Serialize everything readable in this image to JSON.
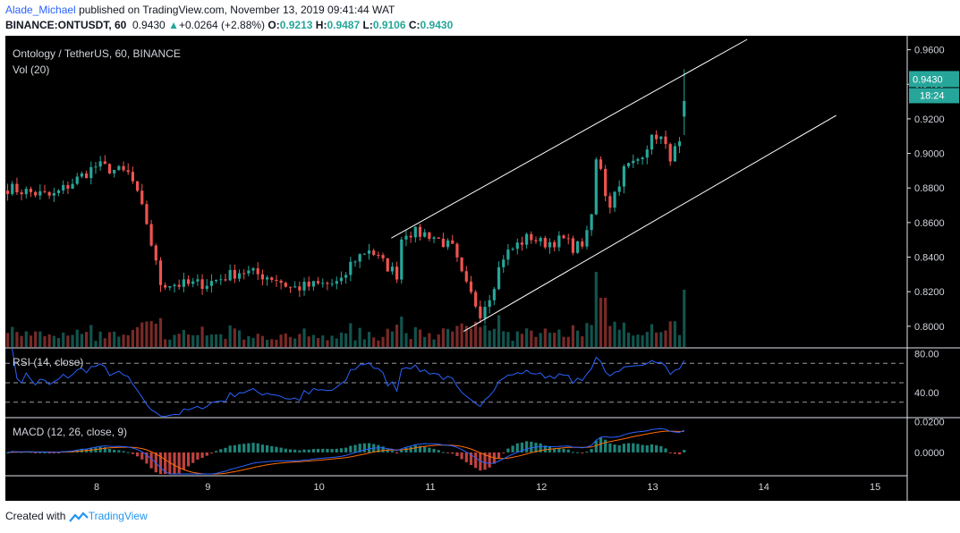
{
  "header": {
    "author": "Alade_Michael",
    "published": "published on TradingView.com, November 13, 2019 09:41:44 WAT",
    "symbol": "BINANCE:ONTUSDT, 60",
    "last": "0.9430",
    "arrow": "▲",
    "change": "+0.0264 (+2.88%)",
    "o_label": "O:",
    "o": "0.9213",
    "h_label": "H:",
    "h": "0.9487",
    "l_label": "L:",
    "l": "0.9106",
    "c_label": "C:",
    "c": "0.9430"
  },
  "footer": {
    "created_with": "Created with",
    "brand": "TradingView"
  },
  "colors": {
    "up": "#26a69a",
    "down": "#ef5350",
    "rsi": "#2962ff",
    "macd": "#2962ff",
    "signal": "#ff6d00",
    "background": "#000000",
    "channel": "#ffffff"
  },
  "chart_data": [
    {
      "type": "candlestick",
      "title": "Ontology / TetherUS, 60, BINANCE",
      "volume_label": "Vol (20)",
      "x_ticks": [
        "8",
        "9",
        "10",
        "11",
        "12",
        "13",
        "14",
        "15"
      ],
      "y_ticks": [
        "0.8000",
        "0.8200",
        "0.8400",
        "0.8600",
        "0.8800",
        "0.9000",
        "0.9200",
        "0.9400",
        "0.9600"
      ],
      "ylim": [
        0.788,
        0.966
      ],
      "last_price": "0.9430",
      "countdown": "18:24",
      "close_waypoints": [
        [
          7.2,
          0.88
        ],
        [
          7.6,
          0.875
        ],
        [
          8.0,
          0.893
        ],
        [
          8.3,
          0.888
        ],
        [
          8.45,
          0.86
        ],
        [
          8.57,
          0.825
        ],
        [
          8.8,
          0.824
        ],
        [
          9.0,
          0.825
        ],
        [
          9.3,
          0.832
        ],
        [
          9.6,
          0.828
        ],
        [
          9.75,
          0.822
        ],
        [
          10.0,
          0.824
        ],
        [
          10.2,
          0.825
        ],
        [
          10.3,
          0.838
        ],
        [
          10.45,
          0.845
        ],
        [
          10.55,
          0.838
        ],
        [
          10.7,
          0.83
        ],
        [
          10.75,
          0.855
        ],
        [
          11.0,
          0.853
        ],
        [
          11.2,
          0.845
        ],
        [
          11.3,
          0.826
        ],
        [
          11.45,
          0.808
        ],
        [
          11.55,
          0.82
        ],
        [
          11.65,
          0.84
        ],
        [
          11.8,
          0.848
        ],
        [
          11.9,
          0.852
        ],
        [
          12.0,
          0.848
        ],
        [
          12.2,
          0.85
        ],
        [
          12.3,
          0.845
        ],
        [
          12.4,
          0.85
        ],
        [
          12.47,
          0.87
        ],
        [
          12.5,
          0.905
        ],
        [
          12.6,
          0.868
        ],
        [
          12.75,
          0.892
        ],
        [
          12.85,
          0.895
        ],
        [
          12.95,
          0.905
        ],
        [
          13.05,
          0.912
        ],
        [
          13.15,
          0.898
        ],
        [
          13.25,
          0.905
        ],
        [
          13.3,
          0.943
        ]
      ],
      "channel": {
        "upper": {
          "from": [
            10.65,
            0.851
          ],
          "to": [
            13.85,
            0.966
          ]
        },
        "lower": {
          "from": [
            11.3,
            0.797
          ],
          "to": [
            14.65,
            0.922
          ]
        }
      }
    },
    {
      "type": "line",
      "title": "RSI (14, close)",
      "y_ticks": [
        "40.00",
        "80.00"
      ],
      "bands": [
        30,
        50,
        70
      ],
      "ylim": [
        15,
        85
      ]
    },
    {
      "type": "line",
      "title": "MACD (12, 26, close, 9)",
      "y_ticks": [
        "0.0000",
        "0.0200"
      ],
      "ylim": [
        -0.014,
        0.022
      ]
    }
  ]
}
